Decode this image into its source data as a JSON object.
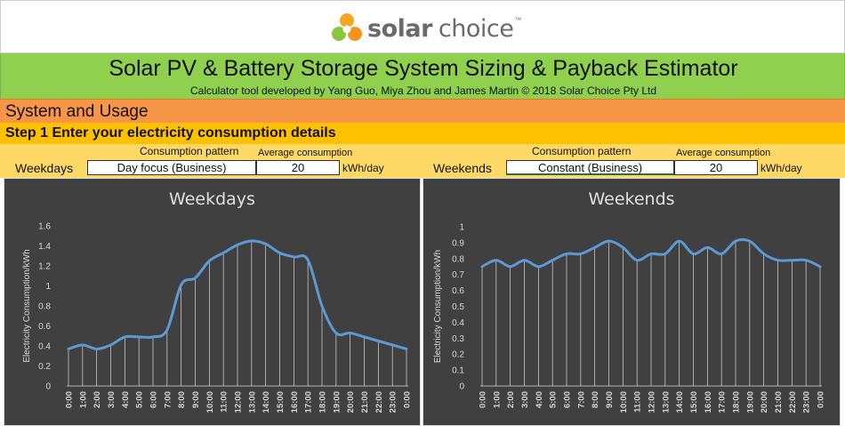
{
  "logo": {
    "word1": "solar",
    "word2": "choice",
    "tm": "™"
  },
  "header": {
    "title": "Solar PV & Battery Storage System Sizing & Payback Estimator",
    "subtitle": "Calculator tool developed by Yang Guo, Miya Zhou and James Martin © 2018 Solar Choice Pty Ltd"
  },
  "section": {
    "title": "System and Usage"
  },
  "step": {
    "title": "Step 1 Enter your electricity consumption details"
  },
  "inputs": {
    "weekdays": {
      "label": "Weekdays",
      "pattern_header": "Consumption pattern",
      "avg_header": "Average consumption",
      "pattern_value": "Day focus (Business)",
      "avg_value": "20",
      "unit": "kWh/day"
    },
    "weekends": {
      "label": "Weekends",
      "pattern_header": "Consumption pattern",
      "avg_header": "Average consumption",
      "pattern_value": "Constant (Business)",
      "avg_value": "20",
      "unit": "kWh/day"
    }
  },
  "colors": {
    "chart_bg": "#404040",
    "line": "#5b9bd5",
    "grid": "#d9d9d9",
    "text": "#d9d9d9"
  },
  "chart_data": [
    {
      "type": "line",
      "title": "Weekdays",
      "xlabel": "",
      "ylabel": "Electricity Consumption/kWh",
      "ylim": [
        0,
        1.6
      ],
      "yticks": [
        0,
        0.2,
        0.4,
        0.6,
        0.8,
        1,
        1.2,
        1.4,
        1.6
      ],
      "ytick_labels": [
        "0",
        "0.2",
        "0.4",
        "0.6",
        "0.8",
        "1",
        "1.2",
        "1.4",
        "1.6"
      ],
      "categories": [
        "0:00",
        "1:00",
        "2:00",
        "3:00",
        "4:00",
        "5:00",
        "6:00",
        "7:00",
        "8:00",
        "9:00",
        "10:00",
        "11:00",
        "12:00",
        "13:00",
        "14:00",
        "15:00",
        "16:00",
        "17:00",
        "18:00",
        "19:00",
        "20:00",
        "21:00",
        "22:00",
        "23:00",
        "0:00"
      ],
      "values": [
        0.37,
        0.41,
        0.37,
        0.41,
        0.49,
        0.49,
        0.49,
        0.56,
        1.01,
        1.08,
        1.25,
        1.33,
        1.41,
        1.45,
        1.42,
        1.33,
        1.29,
        1.26,
        0.8,
        0.53,
        0.53,
        0.49,
        0.45,
        0.41,
        0.37
      ],
      "grid": false,
      "drop_lines": true
    },
    {
      "type": "line",
      "title": "Weekends",
      "xlabel": "",
      "ylabel": "Electricity Consumption/kWh",
      "ylim": [
        0,
        1
      ],
      "yticks": [
        0,
        0.1,
        0.2,
        0.3,
        0.4,
        0.5,
        0.6,
        0.7,
        0.8,
        0.9,
        1
      ],
      "ytick_labels": [
        "0",
        "0.1",
        "0.2",
        "0.3",
        "0.4",
        "0.5",
        "0.6",
        "0.7",
        "0.8",
        "0.9",
        "1"
      ],
      "categories": [
        "0:00",
        "1:00",
        "2:00",
        "3:00",
        "4:00",
        "5:00",
        "6:00",
        "7:00",
        "8:00",
        "9:00",
        "10:00",
        "11:00",
        "12:00",
        "13:00",
        "14:00",
        "15:00",
        "16:00",
        "17:00",
        "18:00",
        "19:00",
        "20:00",
        "21:00",
        "22:00",
        "23:00",
        "0:00"
      ],
      "values": [
        0.75,
        0.79,
        0.75,
        0.79,
        0.75,
        0.79,
        0.83,
        0.83,
        0.87,
        0.91,
        0.87,
        0.79,
        0.83,
        0.83,
        0.91,
        0.83,
        0.87,
        0.83,
        0.91,
        0.91,
        0.83,
        0.79,
        0.79,
        0.79,
        0.75
      ],
      "grid": false,
      "drop_lines": true
    }
  ]
}
